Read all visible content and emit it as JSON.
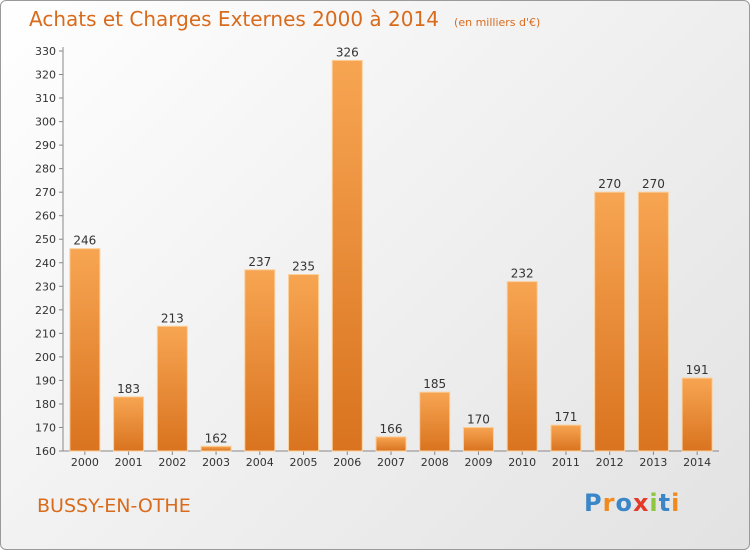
{
  "chart_data": {
    "type": "bar",
    "title": "Achats et Charges Externes 2000 à 2014",
    "subtitle": "(en milliers d'€)",
    "categories": [
      "2000",
      "2001",
      "2002",
      "2003",
      "2004",
      "2005",
      "2006",
      "2007",
      "2008",
      "2009",
      "2010",
      "2011",
      "2012",
      "2013",
      "2014"
    ],
    "values": [
      246,
      183,
      213,
      162,
      237,
      235,
      326,
      166,
      185,
      170,
      232,
      171,
      270,
      270,
      191
    ],
    "ylim": [
      160,
      330
    ],
    "yticks": [
      160,
      170,
      180,
      190,
      200,
      210,
      220,
      230,
      240,
      250,
      260,
      270,
      280,
      290,
      300,
      310,
      320,
      330
    ],
    "grid": false,
    "bar_color": "#f0a050"
  },
  "footer": {
    "place": "BUSSY-EN-OTHE",
    "logo": "Proxiti"
  }
}
